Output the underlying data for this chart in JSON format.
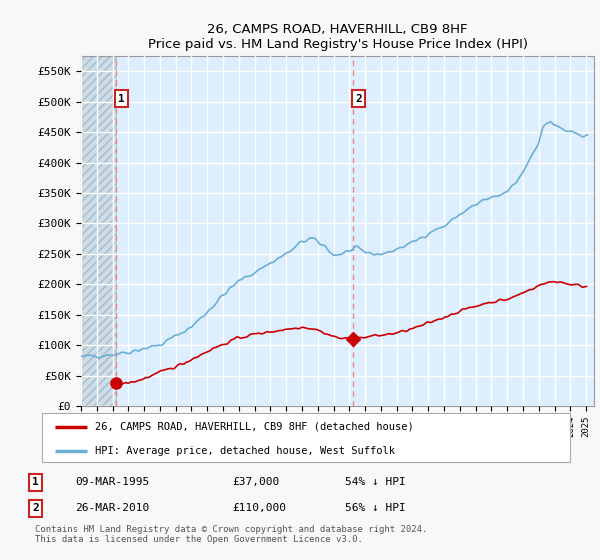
{
  "title": "26, CAMPS ROAD, HAVERHILL, CB9 8HF",
  "subtitle": "Price paid vs. HM Land Registry's House Price Index (HPI)",
  "ylabel_ticks": [
    "£0",
    "£50K",
    "£100K",
    "£150K",
    "£200K",
    "£250K",
    "£300K",
    "£350K",
    "£400K",
    "£450K",
    "£500K",
    "£550K"
  ],
  "ytick_values": [
    0,
    50000,
    100000,
    150000,
    200000,
    250000,
    300000,
    350000,
    400000,
    450000,
    500000,
    550000
  ],
  "ylim": [
    0,
    575000
  ],
  "xlim_start": 1993,
  "xlim_end": 2025.5,
  "hpi_color": "#6baed6",
  "price_color": "#cc0000",
  "vline_color": "#ee8888",
  "marker1_x": 1995.19,
  "marker1_y": 37000,
  "marker2_x": 2010.23,
  "marker2_y": 110000,
  "legend_house_label": "26, CAMPS ROAD, HAVERHILL, CB9 8HF (detached house)",
  "legend_hpi_label": "HPI: Average price, detached house, West Suffolk",
  "table_row1": [
    "1",
    "09-MAR-1995",
    "£37,000",
    "54% ↓ HPI"
  ],
  "table_row2": [
    "2",
    "26-MAR-2010",
    "£110,000",
    "56% ↓ HPI"
  ],
  "footnote": "Contains HM Land Registry data © Crown copyright and database right 2024.\nThis data is licensed under the Open Government Licence v3.0.",
  "fig_facecolor": "#f8f8f8",
  "plot_bg_color": "#ddeeff",
  "hatch_region_end": 1995.19,
  "hatch_color": "#b8cfe0",
  "grid_color": "#ffffff"
}
